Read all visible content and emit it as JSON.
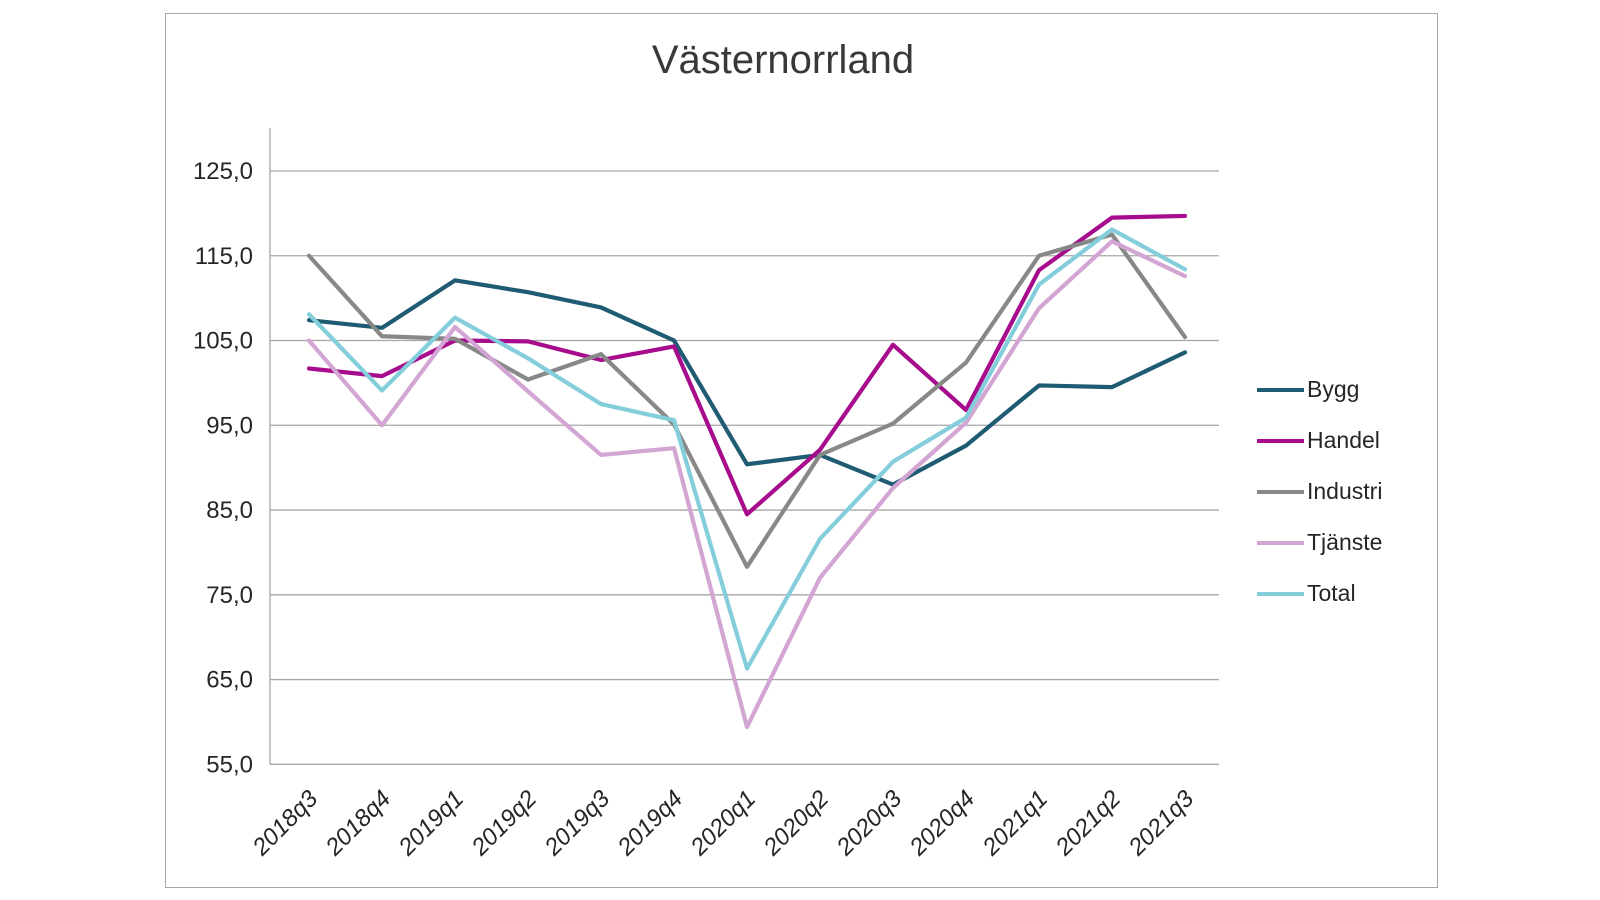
{
  "chart": {
    "border_color": "#a6a6a6",
    "axis_color": "#a6a6a6",
    "text_color": "#262626",
    "title_color": "#383838",
    "background": "#ffffff"
  },
  "chart_data": {
    "type": "line",
    "title": "Västernorrland",
    "categories": [
      "2018q3",
      "2018q4",
      "2019q1",
      "2019q2",
      "2019q3",
      "2019q4",
      "2020q1",
      "2020q2",
      "2020q3",
      "2020q4",
      "2021q1",
      "2021q2",
      "2021q3"
    ],
    "series": [
      {
        "name": "Bygg",
        "color": "#1f5b73",
        "values": [
          107.4,
          106.5,
          112.1,
          110.7,
          108.9,
          105.0,
          90.4,
          91.5,
          88.0,
          92.6,
          99.7,
          99.5,
          103.6
        ]
      },
      {
        "name": "Handel",
        "color": "#a60c8c",
        "values": [
          101.7,
          100.8,
          105.0,
          104.9,
          102.7,
          104.3,
          84.5,
          92.1,
          104.5,
          96.8,
          113.3,
          119.5,
          119.7
        ]
      },
      {
        "name": "Industri",
        "color": "#888888",
        "values": [
          115.0,
          105.5,
          105.2,
          100.4,
          103.4,
          95.1,
          78.3,
          91.5,
          95.2,
          102.4,
          115.0,
          117.5,
          105.4
        ]
      },
      {
        "name": "Tjänste",
        "color": "#d3a5d3",
        "values": [
          105.0,
          95.0,
          106.6,
          99.0,
          91.5,
          92.3,
          59.4,
          77.0,
          87.6,
          95.3,
          108.8,
          116.7,
          112.6
        ]
      },
      {
        "name": "Total",
        "color": "#84cedc",
        "values": [
          108.1,
          99.1,
          107.7,
          102.9,
          97.5,
          95.6,
          66.3,
          81.6,
          90.7,
          95.9,
          111.6,
          118.1,
          113.4
        ]
      }
    ],
    "ylim": [
      55,
      130
    ],
    "yticks": [
      55,
      65,
      75,
      85,
      95,
      105,
      115,
      125
    ],
    "ytick_labels": [
      "55,0",
      "65,0",
      "75,0",
      "85,0",
      "95,0",
      "105,0",
      "115,0",
      "125,0"
    ],
    "grid": true,
    "legend_position": "right",
    "x_labels_rotation_deg": -45,
    "x_labels_italic": true
  }
}
